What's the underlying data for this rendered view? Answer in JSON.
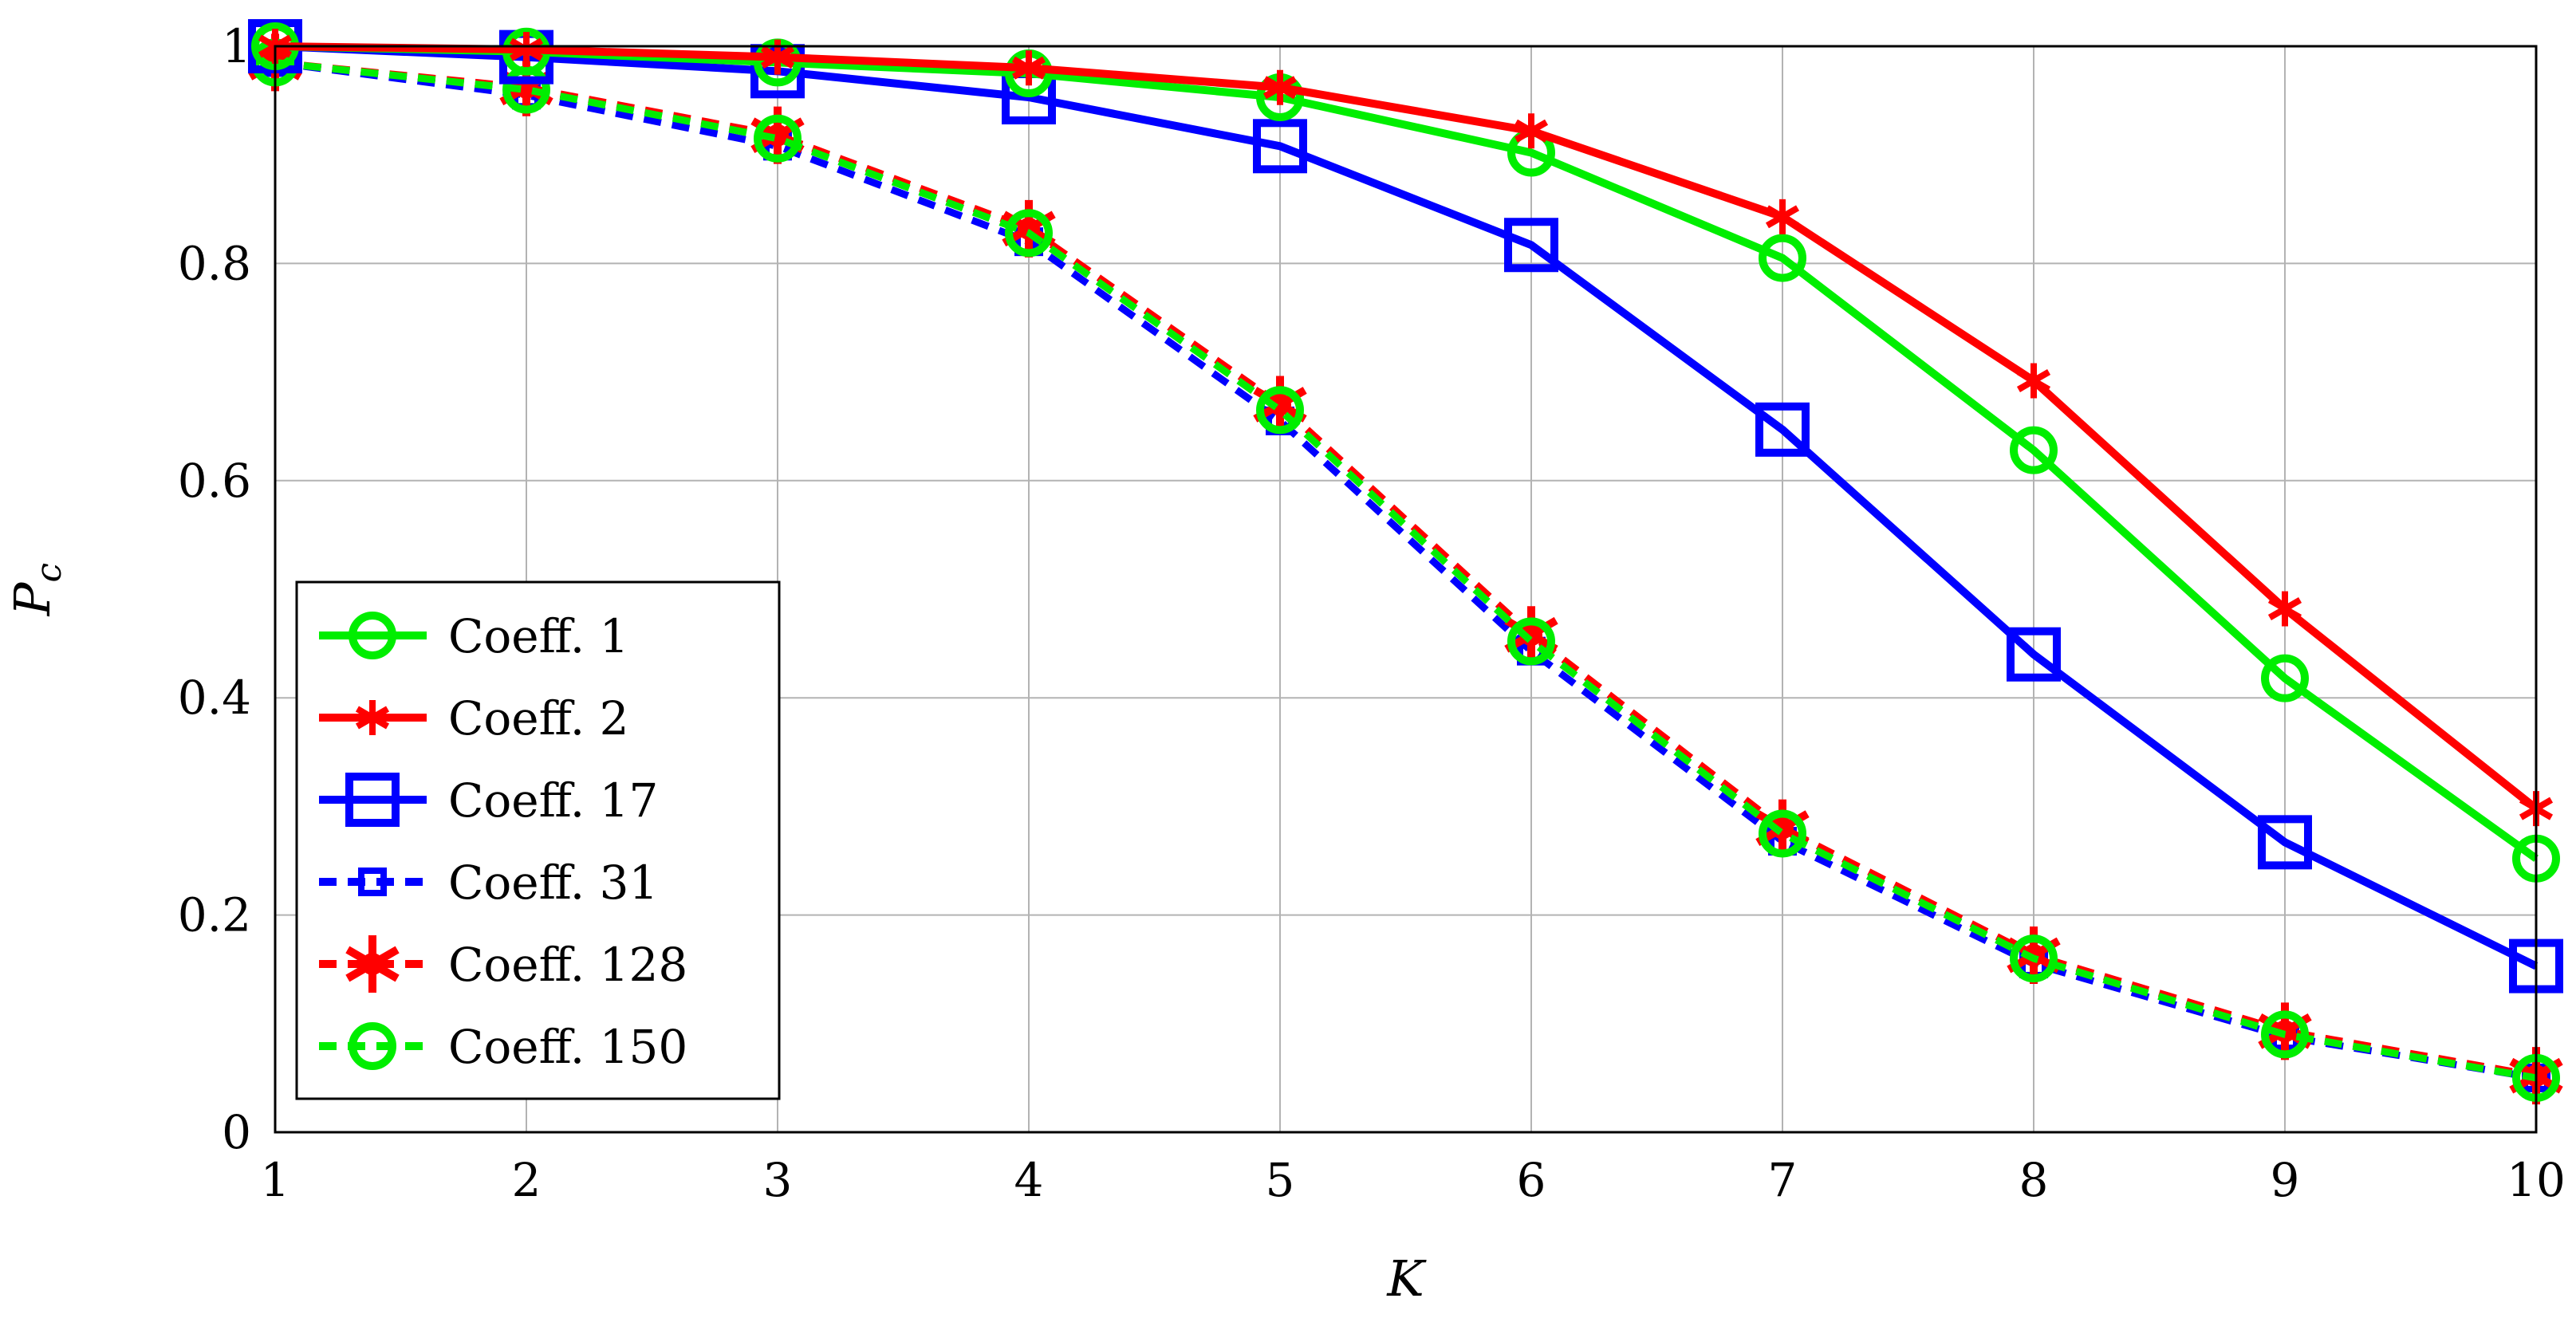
{
  "chart_data": {
    "type": "line",
    "title": "",
    "xlabel": "K",
    "ylabel": "P",
    "ylabel_subscript": "c",
    "xlim": [
      1,
      10
    ],
    "ylim": [
      0,
      1
    ],
    "x_ticks": [
      "1",
      "2",
      "3",
      "4",
      "5",
      "6",
      "7",
      "8",
      "9",
      "10"
    ],
    "y_ticks": [
      "0",
      "0.2",
      "0.4",
      "0.6",
      "0.8",
      "1"
    ],
    "grid": true,
    "legend_position": "bottom-left",
    "x": [
      1,
      2,
      3,
      4,
      5,
      6,
      7,
      8,
      9,
      10
    ],
    "series": [
      {
        "name": "Coeff. 1",
        "color": "#00ee00",
        "dash": "solid",
        "marker": "circle",
        "values": [
          1.0,
          0.995,
          0.985,
          0.975,
          0.953,
          0.902,
          0.805,
          0.628,
          0.418,
          0.252
        ]
      },
      {
        "name": "Coeff. 2",
        "color": "#ff0000",
        "dash": "solid",
        "marker": "star",
        "values": [
          1.0,
          0.997,
          0.99,
          0.98,
          0.962,
          0.922,
          0.843,
          0.692,
          0.482,
          0.298
        ]
      },
      {
        "name": "Coeff. 17",
        "color": "#0000ff",
        "dash": "solid",
        "marker": "square",
        "values": [
          1.0,
          0.99,
          0.977,
          0.953,
          0.908,
          0.817,
          0.647,
          0.44,
          0.267,
          0.153
        ]
      },
      {
        "name": "Coeff. 31",
        "color": "#0000ff",
        "dash": "dashed",
        "marker": "square-small",
        "values": [
          0.985,
          0.955,
          0.908,
          0.82,
          0.655,
          0.443,
          0.268,
          0.155,
          0.088,
          0.05
        ]
      },
      {
        "name": "Coeff. 128",
        "color": "#ff0000",
        "dash": "dashed",
        "marker": "asterisk",
        "values": [
          0.985,
          0.962,
          0.918,
          0.832,
          0.67,
          0.458,
          0.28,
          0.163,
          0.093,
          0.052
        ]
      },
      {
        "name": "Coeff. 150",
        "color": "#00ee00",
        "dash": "dashed",
        "marker": "circle",
        "values": [
          0.985,
          0.96,
          0.915,
          0.828,
          0.665,
          0.452,
          0.275,
          0.16,
          0.09,
          0.05
        ]
      }
    ]
  }
}
